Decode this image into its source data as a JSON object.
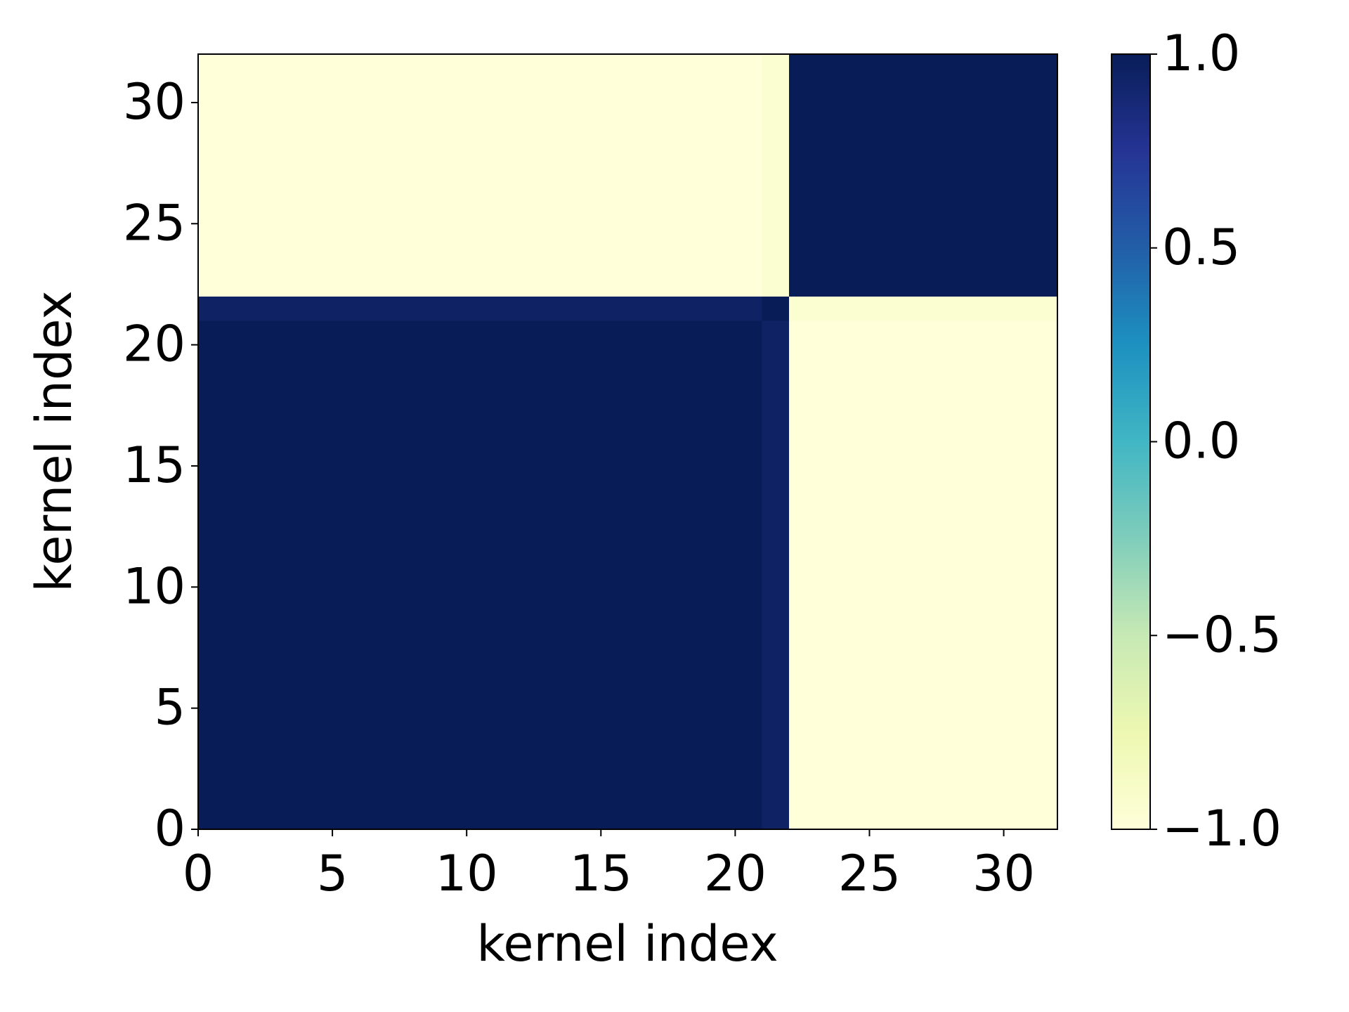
{
  "chart_data": {
    "type": "heatmap",
    "x_label": "kernel index",
    "y_label": "kernel index",
    "xlim": [
      0,
      32
    ],
    "ylim": [
      0,
      32
    ],
    "xticks": [
      0,
      5,
      10,
      15,
      20,
      25,
      30
    ],
    "yticks": [
      0,
      5,
      10,
      15,
      20,
      25,
      30
    ],
    "colormap": "YlGnBu",
    "clim": [
      -1,
      1
    ],
    "cbar_ticks": [
      {
        "value": -1,
        "label": "−1.0"
      },
      {
        "value": -0.5,
        "label": "−0.5"
      },
      {
        "value": 0,
        "label": "0.0"
      },
      {
        "value": 0.5,
        "label": "0.5"
      },
      {
        "value": 1,
        "label": "1.0"
      }
    ],
    "z": [
      [
        1,
        1,
        1,
        1,
        1,
        1,
        1,
        1,
        1,
        1,
        1,
        1,
        1,
        1,
        1,
        1,
        1,
        1,
        1,
        1,
        1,
        0.95,
        -1,
        -1,
        -1,
        -1,
        -1,
        -1,
        -1,
        -1,
        -1,
        -1
      ],
      [
        1,
        1,
        1,
        1,
        1,
        1,
        1,
        1,
        1,
        1,
        1,
        1,
        1,
        1,
        1,
        1,
        1,
        1,
        1,
        1,
        1,
        0.95,
        -1,
        -1,
        -1,
        -1,
        -1,
        -1,
        -1,
        -1,
        -1,
        -1
      ],
      [
        1,
        1,
        1,
        1,
        1,
        1,
        1,
        1,
        1,
        1,
        1,
        1,
        1,
        1,
        1,
        1,
        1,
        1,
        1,
        1,
        1,
        0.95,
        -1,
        -1,
        -1,
        -1,
        -1,
        -1,
        -1,
        -1,
        -1,
        -1
      ],
      [
        1,
        1,
        1,
        1,
        1,
        1,
        1,
        1,
        1,
        1,
        1,
        1,
        1,
        1,
        1,
        1,
        1,
        1,
        1,
        1,
        1,
        0.95,
        -1,
        -1,
        -1,
        -1,
        -1,
        -1,
        -1,
        -1,
        -1,
        -1
      ],
      [
        1,
        1,
        1,
        1,
        1,
        1,
        1,
        1,
        1,
        1,
        1,
        1,
        1,
        1,
        1,
        1,
        1,
        1,
        1,
        1,
        1,
        0.95,
        -1,
        -1,
        -1,
        -1,
        -1,
        -1,
        -1,
        -1,
        -1,
        -1
      ],
      [
        1,
        1,
        1,
        1,
        1,
        1,
        1,
        1,
        1,
        1,
        1,
        1,
        1,
        1,
        1,
        1,
        1,
        1,
        1,
        1,
        1,
        0.95,
        -1,
        -1,
        -1,
        -1,
        -1,
        -1,
        -1,
        -1,
        -1,
        -1
      ],
      [
        1,
        1,
        1,
        1,
        1,
        1,
        1,
        1,
        1,
        1,
        1,
        1,
        1,
        1,
        1,
        1,
        1,
        1,
        1,
        1,
        1,
        0.95,
        -1,
        -1,
        -1,
        -1,
        -1,
        -1,
        -1,
        -1,
        -1,
        -1
      ],
      [
        1,
        1,
        1,
        1,
        1,
        1,
        1,
        1,
        1,
        1,
        1,
        1,
        1,
        1,
        1,
        1,
        1,
        1,
        1,
        1,
        1,
        0.95,
        -1,
        -1,
        -1,
        -1,
        -1,
        -1,
        -1,
        -1,
        -1,
        -1
      ],
      [
        1,
        1,
        1,
        1,
        1,
        1,
        1,
        1,
        1,
        1,
        1,
        1,
        1,
        1,
        1,
        1,
        1,
        1,
        1,
        1,
        1,
        0.95,
        -1,
        -1,
        -1,
        -1,
        -1,
        -1,
        -1,
        -1,
        -1,
        -1
      ],
      [
        1,
        1,
        1,
        1,
        1,
        1,
        1,
        1,
        1,
        1,
        1,
        1,
        1,
        1,
        1,
        1,
        1,
        1,
        1,
        1,
        1,
        0.95,
        -1,
        -1,
        -1,
        -1,
        -1,
        -1,
        -1,
        -1,
        -1,
        -1
      ],
      [
        1,
        1,
        1,
        1,
        1,
        1,
        1,
        1,
        1,
        1,
        1,
        1,
        1,
        1,
        1,
        1,
        1,
        1,
        1,
        1,
        1,
        0.95,
        -1,
        -1,
        -1,
        -1,
        -1,
        -1,
        -1,
        -1,
        -1,
        -1
      ],
      [
        1,
        1,
        1,
        1,
        1,
        1,
        1,
        1,
        1,
        1,
        1,
        1,
        1,
        1,
        1,
        1,
        1,
        1,
        1,
        1,
        1,
        0.95,
        -1,
        -1,
        -1,
        -1,
        -1,
        -1,
        -1,
        -1,
        -1,
        -1
      ],
      [
        1,
        1,
        1,
        1,
        1,
        1,
        1,
        1,
        1,
        1,
        1,
        1,
        1,
        1,
        1,
        1,
        1,
        1,
        1,
        1,
        1,
        0.95,
        -1,
        -1,
        -1,
        -1,
        -1,
        -1,
        -1,
        -1,
        -1,
        -1
      ],
      [
        1,
        1,
        1,
        1,
        1,
        1,
        1,
        1,
        1,
        1,
        1,
        1,
        1,
        1,
        1,
        1,
        1,
        1,
        1,
        1,
        1,
        0.95,
        -1,
        -1,
        -1,
        -1,
        -1,
        -1,
        -1,
        -1,
        -1,
        -1
      ],
      [
        1,
        1,
        1,
        1,
        1,
        1,
        1,
        1,
        1,
        1,
        1,
        1,
        1,
        1,
        1,
        1,
        1,
        1,
        1,
        1,
        1,
        0.95,
        -1,
        -1,
        -1,
        -1,
        -1,
        -1,
        -1,
        -1,
        -1,
        -1
      ],
      [
        1,
        1,
        1,
        1,
        1,
        1,
        1,
        1,
        1,
        1,
        1,
        1,
        1,
        1,
        1,
        1,
        1,
        1,
        1,
        1,
        1,
        0.95,
        -1,
        -1,
        -1,
        -1,
        -1,
        -1,
        -1,
        -1,
        -1,
        -1
      ],
      [
        1,
        1,
        1,
        1,
        1,
        1,
        1,
        1,
        1,
        1,
        1,
        1,
        1,
        1,
        1,
        1,
        1,
        1,
        1,
        1,
        1,
        0.95,
        -1,
        -1,
        -1,
        -1,
        -1,
        -1,
        -1,
        -1,
        -1,
        -1
      ],
      [
        1,
        1,
        1,
        1,
        1,
        1,
        1,
        1,
        1,
        1,
        1,
        1,
        1,
        1,
        1,
        1,
        1,
        1,
        1,
        1,
        1,
        0.95,
        -1,
        -1,
        -1,
        -1,
        -1,
        -1,
        -1,
        -1,
        -1,
        -1
      ],
      [
        1,
        1,
        1,
        1,
        1,
        1,
        1,
        1,
        1,
        1,
        1,
        1,
        1,
        1,
        1,
        1,
        1,
        1,
        1,
        1,
        1,
        0.95,
        -1,
        -1,
        -1,
        -1,
        -1,
        -1,
        -1,
        -1,
        -1,
        -1
      ],
      [
        1,
        1,
        1,
        1,
        1,
        1,
        1,
        1,
        1,
        1,
        1,
        1,
        1,
        1,
        1,
        1,
        1,
        1,
        1,
        1,
        1,
        0.95,
        -1,
        -1,
        -1,
        -1,
        -1,
        -1,
        -1,
        -1,
        -1,
        -1
      ],
      [
        1,
        1,
        1,
        1,
        1,
        1,
        1,
        1,
        1,
        1,
        1,
        1,
        1,
        1,
        1,
        1,
        1,
        1,
        1,
        1,
        1,
        0.95,
        -1,
        -1,
        -1,
        -1,
        -1,
        -1,
        -1,
        -1,
        -1,
        -1
      ],
      [
        0.95,
        0.95,
        0.95,
        0.95,
        0.95,
        0.95,
        0.95,
        0.95,
        0.95,
        0.95,
        0.95,
        0.95,
        0.95,
        0.95,
        0.95,
        0.95,
        0.95,
        0.95,
        0.95,
        0.95,
        0.95,
        1,
        -0.95,
        -0.95,
        -0.95,
        -0.95,
        -0.95,
        -0.95,
        -0.95,
        -0.95,
        -0.95,
        -0.95
      ],
      [
        -1,
        -1,
        -1,
        -1,
        -1,
        -1,
        -1,
        -1,
        -1,
        -1,
        -1,
        -1,
        -1,
        -1,
        -1,
        -1,
        -1,
        -1,
        -1,
        -1,
        -1,
        -0.95,
        1,
        1,
        1,
        1,
        1,
        1,
        1,
        1,
        1,
        1
      ],
      [
        -1,
        -1,
        -1,
        -1,
        -1,
        -1,
        -1,
        -1,
        -1,
        -1,
        -1,
        -1,
        -1,
        -1,
        -1,
        -1,
        -1,
        -1,
        -1,
        -1,
        -1,
        -0.95,
        1,
        1,
        1,
        1,
        1,
        1,
        1,
        1,
        1,
        1
      ],
      [
        -1,
        -1,
        -1,
        -1,
        -1,
        -1,
        -1,
        -1,
        -1,
        -1,
        -1,
        -1,
        -1,
        -1,
        -1,
        -1,
        -1,
        -1,
        -1,
        -1,
        -1,
        -0.95,
        1,
        1,
        1,
        1,
        1,
        1,
        1,
        1,
        1,
        1
      ],
      [
        -1,
        -1,
        -1,
        -1,
        -1,
        -1,
        -1,
        -1,
        -1,
        -1,
        -1,
        -1,
        -1,
        -1,
        -1,
        -1,
        -1,
        -1,
        -1,
        -1,
        -1,
        -0.95,
        1,
        1,
        1,
        1,
        1,
        1,
        1,
        1,
        1,
        1
      ],
      [
        -1,
        -1,
        -1,
        -1,
        -1,
        -1,
        -1,
        -1,
        -1,
        -1,
        -1,
        -1,
        -1,
        -1,
        -1,
        -1,
        -1,
        -1,
        -1,
        -1,
        -1,
        -0.95,
        1,
        1,
        1,
        1,
        1,
        1,
        1,
        1,
        1,
        1
      ],
      [
        -1,
        -1,
        -1,
        -1,
        -1,
        -1,
        -1,
        -1,
        -1,
        -1,
        -1,
        -1,
        -1,
        -1,
        -1,
        -1,
        -1,
        -1,
        -1,
        -1,
        -1,
        -0.95,
        1,
        1,
        1,
        1,
        1,
        1,
        1,
        1,
        1,
        1
      ],
      [
        -1,
        -1,
        -1,
        -1,
        -1,
        -1,
        -1,
        -1,
        -1,
        -1,
        -1,
        -1,
        -1,
        -1,
        -1,
        -1,
        -1,
        -1,
        -1,
        -1,
        -1,
        -0.95,
        1,
        1,
        1,
        1,
        1,
        1,
        1,
        1,
        1,
        1
      ],
      [
        -1,
        -1,
        -1,
        -1,
        -1,
        -1,
        -1,
        -1,
        -1,
        -1,
        -1,
        -1,
        -1,
        -1,
        -1,
        -1,
        -1,
        -1,
        -1,
        -1,
        -1,
        -0.95,
        1,
        1,
        1,
        1,
        1,
        1,
        1,
        1,
        1,
        1
      ],
      [
        -1,
        -1,
        -1,
        -1,
        -1,
        -1,
        -1,
        -1,
        -1,
        -1,
        -1,
        -1,
        -1,
        -1,
        -1,
        -1,
        -1,
        -1,
        -1,
        -1,
        -1,
        -0.95,
        1,
        1,
        1,
        1,
        1,
        1,
        1,
        1,
        1,
        1
      ],
      [
        -1,
        -1,
        -1,
        -1,
        -1,
        -1,
        -1,
        -1,
        -1,
        -1,
        -1,
        -1,
        -1,
        -1,
        -1,
        -1,
        -1,
        -1,
        -1,
        -1,
        -1,
        -0.95,
        1,
        1,
        1,
        1,
        1,
        1,
        1,
        1,
        1,
        1
      ]
    ]
  }
}
